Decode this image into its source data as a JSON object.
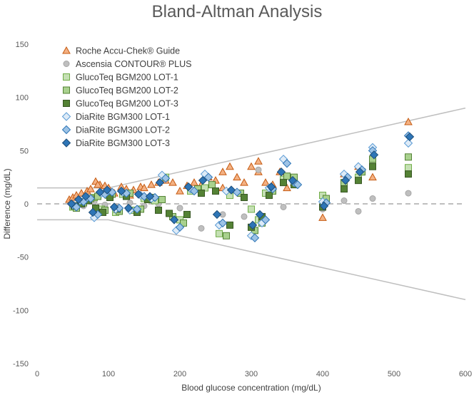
{
  "chart_data": {
    "type": "scatter",
    "title": "Bland-Altman Analysis",
    "xlabel": "Blood glucose concentration (mg/dL)",
    "ylabel": "Difference (mg/dL)",
    "xlim": [
      0,
      600
    ],
    "ylim": [
      -150,
      150
    ],
    "xticks": [
      0,
      100,
      200,
      300,
      400,
      500,
      600
    ],
    "yticks": [
      -150,
      -100,
      -50,
      0,
      50,
      100,
      150
    ],
    "grid": false,
    "legend_position": "top-left",
    "limit_lines": [
      {
        "x": [
          0,
          100,
          600
        ],
        "y": [
          15,
          15,
          90
        ]
      },
      {
        "x": [
          0,
          100,
          600
        ],
        "y": [
          -15,
          -15,
          -90
        ]
      }
    ],
    "reference_line": {
      "y": 0,
      "style": "dashed",
      "color": "#bfbfbf"
    },
    "series": [
      {
        "name": "Roche Accu-Chek® Guide",
        "marker": "triangle",
        "fill": "#f4b183",
        "stroke": "#c55a11",
        "x": [
          45,
          50,
          55,
          62,
          70,
          75,
          82,
          88,
          95,
          100,
          108,
          118,
          125,
          135,
          145,
          150,
          160,
          170,
          180,
          190,
          200,
          210,
          220,
          230,
          240,
          250,
          260,
          270,
          280,
          290,
          300,
          310,
          320,
          330,
          340,
          350,
          360,
          400,
          430,
          450,
          470,
          520,
          85,
          130,
          260,
          310
        ],
        "y": [
          4,
          6,
          8,
          10,
          12,
          14,
          21,
          18,
          17,
          15,
          10,
          16,
          14,
          13,
          16,
          15,
          18,
          20,
          22,
          20,
          12,
          17,
          20,
          18,
          25,
          22,
          30,
          35,
          25,
          20,
          35,
          30,
          20,
          18,
          30,
          15,
          20,
          -13,
          28,
          35,
          25,
          77,
          18,
          8,
          15,
          40
        ]
      },
      {
        "name": "Ascensia CONTOUR® PLUS",
        "marker": "circle",
        "fill": "#bfbfbf",
        "stroke": "#a6a6a6",
        "x": [
          50,
          65,
          80,
          95,
          110,
          130,
          150,
          170,
          200,
          230,
          260,
          290,
          310,
          345,
          400,
          430,
          450,
          470,
          520
        ],
        "y": [
          0,
          -2,
          2,
          -1,
          -3,
          1,
          -2,
          0,
          -4,
          -23,
          -10,
          -12,
          32,
          -3,
          -5,
          3,
          -7,
          5,
          10
        ]
      },
      {
        "name": "GlucoTeq BGM200 LOT-1",
        "marker": "square",
        "fill": "#c5e0b4",
        "stroke": "#70ad47",
        "x": [
          50,
          60,
          70,
          80,
          90,
          100,
          110,
          120,
          135,
          150,
          165,
          180,
          200,
          215,
          235,
          255,
          270,
          300,
          310,
          320,
          345,
          360,
          400,
          430,
          450,
          470,
          520
        ],
        "y": [
          -3,
          2,
          4,
          6,
          -5,
          8,
          -8,
          9,
          -6,
          5,
          3,
          25,
          -15,
          12,
          15,
          -28,
          8,
          -5,
          -15,
          10,
          23,
          22,
          8,
          17,
          25,
          38,
          34
        ]
      },
      {
        "name": "GlucoTeq BGM200 LOT-2",
        "marker": "square",
        "fill": "#a9d18e",
        "stroke": "#548235",
        "x": [
          55,
          65,
          75,
          85,
          95,
          105,
          115,
          130,
          145,
          160,
          175,
          190,
          205,
          225,
          245,
          265,
          285,
          305,
          315,
          330,
          350,
          360,
          405,
          430,
          455,
          470,
          520
        ],
        "y": [
          -4,
          1,
          5,
          7,
          -6,
          9,
          -7,
          10,
          -5,
          6,
          4,
          -12,
          -18,
          14,
          18,
          -30,
          10,
          -25,
          -18,
          12,
          26,
          25,
          5,
          20,
          30,
          42,
          44
        ]
      },
      {
        "name": "GlucoTeq BGM200 LOT-3",
        "marker": "square",
        "fill": "#548235",
        "stroke": "#385723",
        "x": [
          52,
          62,
          72,
          82,
          92,
          102,
          112,
          125,
          140,
          155,
          170,
          185,
          210,
          230,
          250,
          270,
          290,
          300,
          315,
          325,
          345,
          360,
          400,
          430,
          450,
          470,
          520
        ],
        "y": [
          -2,
          0,
          3,
          -4,
          -8,
          6,
          -5,
          7,
          -8,
          4,
          -6,
          -9,
          -10,
          10,
          12,
          -20,
          6,
          -22,
          -12,
          8,
          20,
          18,
          -3,
          14,
          22,
          35,
          28
        ]
      },
      {
        "name": "DiaRite BGM300 LOT-1",
        "marker": "diamond",
        "fill": "#deebf7",
        "stroke": "#5b9bd5",
        "x": [
          50,
          60,
          70,
          80,
          90,
          100,
          110,
          120,
          130,
          145,
          160,
          175,
          195,
          215,
          235,
          255,
          265,
          300,
          315,
          325,
          345,
          360,
          400,
          430,
          450,
          470,
          520
        ],
        "y": [
          -1,
          3,
          6,
          -13,
          10,
          12,
          -5,
          11,
          -6,
          8,
          5,
          27,
          -25,
          14,
          28,
          -20,
          12,
          -30,
          -18,
          15,
          42,
          20,
          2,
          28,
          35,
          53,
          57
        ]
      },
      {
        "name": "DiaRite BGM300 LOT-2",
        "marker": "diamond",
        "fill": "#9dc3e6",
        "stroke": "#2e75b6",
        "x": [
          55,
          65,
          75,
          85,
          95,
          105,
          115,
          125,
          140,
          150,
          165,
          180,
          200,
          220,
          240,
          260,
          280,
          305,
          320,
          330,
          350,
          365,
          405,
          435,
          455,
          470,
          520
        ],
        "y": [
          -3,
          2,
          5,
          -10,
          9,
          11,
          -4,
          10,
          -5,
          7,
          6,
          24,
          -22,
          12,
          25,
          -18,
          11,
          -32,
          -15,
          14,
          38,
          18,
          1,
          25,
          32,
          50,
          64
        ]
      },
      {
        "name": "DiaRite BGM300 LOT-3",
        "marker": "diamond",
        "fill": "#2e75b6",
        "stroke": "#1f4e79",
        "x": [
          48,
          58,
          68,
          78,
          88,
          98,
          108,
          118,
          128,
          142,
          158,
          172,
          192,
          212,
          232,
          252,
          272,
          302,
          312,
          328,
          342,
          358,
          402,
          432,
          452,
          472,
          522
        ],
        "y": [
          0,
          4,
          7,
          -8,
          11,
          13,
          -3,
          12,
          -4,
          9,
          7,
          20,
          -15,
          16,
          22,
          -10,
          13,
          -20,
          -10,
          16,
          30,
          22,
          -2,
          22,
          30,
          46,
          63
        ]
      }
    ]
  }
}
